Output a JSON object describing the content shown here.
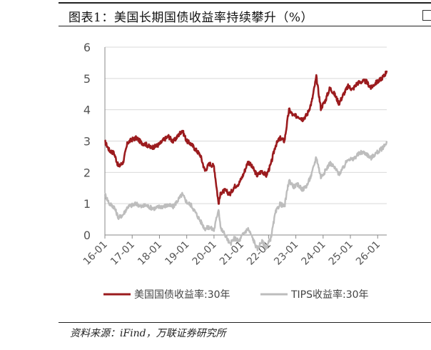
{
  "figure": {
    "title": "图表1：美国长期国债收益率持续攀升（%）",
    "source": "资料来源：iFind，万联证券研究所"
  },
  "chart_data": {
    "type": "line",
    "ylim": [
      0,
      6
    ],
    "yticks": [
      0,
      1,
      2,
      3,
      4,
      5,
      6
    ],
    "xlim": [
      "2016-01",
      "2026-05"
    ],
    "xtick_labels": [
      "16-01",
      "17-01",
      "18-01",
      "19-01",
      "20-01",
      "21-01",
      "22-01",
      "23-01",
      "24-01",
      "25-01",
      "26-01"
    ],
    "grid": true,
    "legend_position": "bottom",
    "series": [
      {
        "name": "美国国债收益率:30年",
        "color": "#9b1b1e",
        "points": [
          [
            "2016-01",
            2.98
          ],
          [
            "2016-03",
            2.7
          ],
          [
            "2016-05",
            2.62
          ],
          [
            "2016-07",
            2.18
          ],
          [
            "2016-09",
            2.32
          ],
          [
            "2016-11",
            2.95
          ],
          [
            "2017-01",
            3.05
          ],
          [
            "2017-03",
            3.1
          ],
          [
            "2017-05",
            2.95
          ],
          [
            "2017-07",
            2.9
          ],
          [
            "2017-09",
            2.8
          ],
          [
            "2017-11",
            2.82
          ],
          [
            "2018-01",
            2.9
          ],
          [
            "2018-03",
            3.05
          ],
          [
            "2018-05",
            3.15
          ],
          [
            "2018-07",
            2.98
          ],
          [
            "2018-09",
            3.15
          ],
          [
            "2018-11",
            3.35
          ],
          [
            "2019-01",
            3.0
          ],
          [
            "2019-03",
            2.9
          ],
          [
            "2019-05",
            2.72
          ],
          [
            "2019-07",
            2.55
          ],
          [
            "2019-09",
            2.05
          ],
          [
            "2019-11",
            2.28
          ],
          [
            "2020-01",
            2.2
          ],
          [
            "2020-03",
            1.0
          ],
          [
            "2020-04",
            1.35
          ],
          [
            "2020-06",
            1.42
          ],
          [
            "2020-08",
            1.3
          ],
          [
            "2020-10",
            1.55
          ],
          [
            "2020-12",
            1.65
          ],
          [
            "2021-02",
            1.95
          ],
          [
            "2021-04",
            2.35
          ],
          [
            "2021-06",
            2.15
          ],
          [
            "2021-08",
            1.9
          ],
          [
            "2021-10",
            2.05
          ],
          [
            "2021-12",
            1.9
          ],
          [
            "2022-02",
            2.25
          ],
          [
            "2022-04",
            2.85
          ],
          [
            "2022-06",
            3.1
          ],
          [
            "2022-08",
            3.0
          ],
          [
            "2022-10",
            4.0
          ],
          [
            "2022-12",
            3.8
          ],
          [
            "2023-02",
            3.8
          ],
          [
            "2023-04",
            3.7
          ],
          [
            "2023-06",
            3.85
          ],
          [
            "2023-08",
            4.25
          ],
          [
            "2023-10",
            5.05
          ],
          [
            "2023-12",
            4.05
          ],
          [
            "2024-02",
            4.3
          ],
          [
            "2024-04",
            4.7
          ],
          [
            "2024-06",
            4.5
          ],
          [
            "2024-08",
            4.2
          ],
          [
            "2024-10",
            4.5
          ],
          [
            "2024-12",
            4.75
          ],
          [
            "2025-02",
            4.65
          ],
          [
            "2025-04",
            4.85
          ],
          [
            "2025-06",
            4.9
          ],
          [
            "2025-08",
            4.9
          ],
          [
            "2025-10",
            4.7
          ],
          [
            "2025-12",
            4.85
          ],
          [
            "2026-02",
            4.95
          ],
          [
            "2026-04",
            5.1
          ],
          [
            "2026-05",
            5.25
          ]
        ]
      },
      {
        "name": "TIPS收益率:30年",
        "color": "#bdbdbd",
        "points": [
          [
            "2016-01",
            1.3
          ],
          [
            "2016-03",
            1.0
          ],
          [
            "2016-05",
            0.9
          ],
          [
            "2016-07",
            0.55
          ],
          [
            "2016-09",
            0.65
          ],
          [
            "2016-11",
            0.9
          ],
          [
            "2017-01",
            0.95
          ],
          [
            "2017-03",
            1.0
          ],
          [
            "2017-05",
            0.9
          ],
          [
            "2017-07",
            0.95
          ],
          [
            "2017-09",
            0.88
          ],
          [
            "2017-11",
            0.85
          ],
          [
            "2018-01",
            0.9
          ],
          [
            "2018-03",
            0.92
          ],
          [
            "2018-05",
            0.95
          ],
          [
            "2018-07",
            0.9
          ],
          [
            "2018-09",
            1.1
          ],
          [
            "2018-11",
            1.3
          ],
          [
            "2019-01",
            1.05
          ],
          [
            "2019-03",
            0.95
          ],
          [
            "2019-05",
            0.7
          ],
          [
            "2019-07",
            0.45
          ],
          [
            "2019-09",
            0.2
          ],
          [
            "2019-11",
            0.25
          ],
          [
            "2020-01",
            0.15
          ],
          [
            "2020-03",
            0.85
          ],
          [
            "2020-04",
            0.2
          ],
          [
            "2020-06",
            0.0
          ],
          [
            "2020-08",
            -0.3
          ],
          [
            "2020-10",
            -0.1
          ],
          [
            "2020-12",
            -0.2
          ],
          [
            "2021-02",
            0.05
          ],
          [
            "2021-04",
            0.2
          ],
          [
            "2021-06",
            -0.1
          ],
          [
            "2021-08",
            -0.45
          ],
          [
            "2021-10",
            -0.2
          ],
          [
            "2021-12",
            -0.4
          ],
          [
            "2022-02",
            -0.1
          ],
          [
            "2022-04",
            0.7
          ],
          [
            "2022-06",
            1.0
          ],
          [
            "2022-08",
            0.9
          ],
          [
            "2022-10",
            1.75
          ],
          [
            "2022-12",
            1.55
          ],
          [
            "2023-02",
            1.6
          ],
          [
            "2023-04",
            1.45
          ],
          [
            "2023-06",
            1.6
          ],
          [
            "2023-08",
            1.95
          ],
          [
            "2023-10",
            2.5
          ],
          [
            "2023-12",
            1.85
          ],
          [
            "2024-02",
            2.05
          ],
          [
            "2024-04",
            2.3
          ],
          [
            "2024-06",
            2.15
          ],
          [
            "2024-08",
            1.95
          ],
          [
            "2024-10",
            2.15
          ],
          [
            "2024-12",
            2.45
          ],
          [
            "2025-02",
            2.4
          ],
          [
            "2025-04",
            2.55
          ],
          [
            "2025-06",
            2.65
          ],
          [
            "2025-08",
            2.6
          ],
          [
            "2025-10",
            2.45
          ],
          [
            "2025-12",
            2.6
          ],
          [
            "2026-02",
            2.7
          ],
          [
            "2026-04",
            2.85
          ],
          [
            "2026-05",
            3.0
          ]
        ]
      }
    ]
  }
}
